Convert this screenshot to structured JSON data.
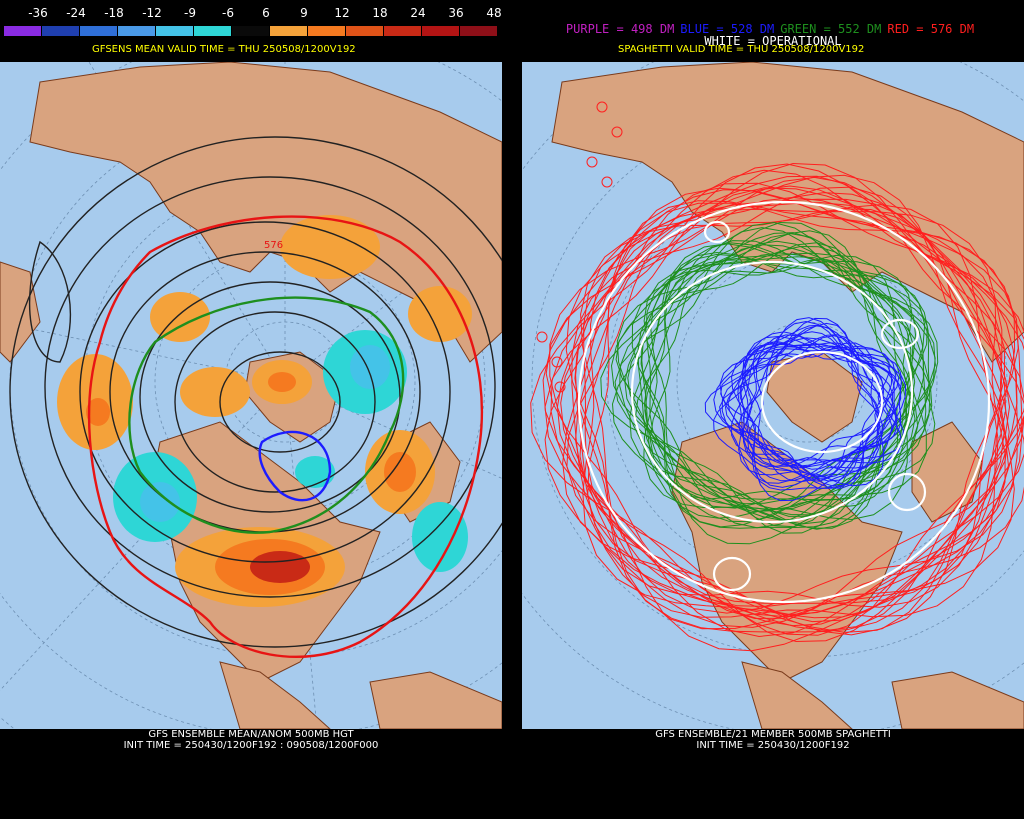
{
  "left": {
    "scale_labels": [
      "-36",
      "-24",
      "-18",
      "-12",
      "-9",
      "-6",
      "6",
      "9",
      "12",
      "18",
      "24",
      "36",
      "48"
    ],
    "scale_colors": [
      "#8a2be2",
      "#1f3fb0",
      "#2f6fd8",
      "#4a9ae8",
      "#44c3e8",
      "#2ed6d6",
      "#0a0a0a",
      "#f4a23a",
      "#f57a20",
      "#e05318",
      "#c92a16",
      "#b31414",
      "#8e0f18"
    ],
    "valid_time": "GFSENS MEAN VALID TIME = THU 250508/1200V192",
    "caption_line1": "GFS ENSEMBLE MEAN/ANOM 500MB HGT",
    "caption_line2": "INIT TIME = 250430/1200F192 : 090508/1200F000",
    "contour_label": "576"
  },
  "right": {
    "legend": [
      {
        "text": "PURPLE = 498 DM",
        "color": "#c020c0"
      },
      {
        "text": "BLUE = 528 DM",
        "color": "#1c1cff"
      },
      {
        "text": "GREEN = 552 DM",
        "color": "#1e8f1e"
      },
      {
        "text": "RED = 576 DM",
        "color": "#ff1f1f"
      }
    ],
    "operational": "WHITE = OPERATIONAL",
    "valid_time": "SPAGHETTI VALID TIME = THU 250508/1200V192",
    "caption_line1": "GFS ENSEMBLE/21 MEMBER 500MB SPAGHETTI",
    "caption_line2": "INIT TIME = 250430/1200F192"
  },
  "map_colors": {
    "ocean": "#a7cbed",
    "land": "#d9a37f",
    "coast": "#7a3b1c"
  }
}
